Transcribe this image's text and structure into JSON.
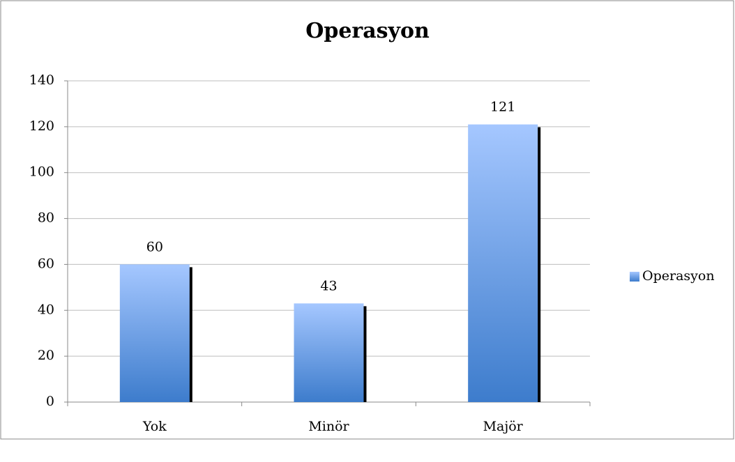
{
  "chart_data": {
    "type": "bar",
    "title": "Operasyon",
    "categories": [
      "Yok",
      "Minör",
      "Majör"
    ],
    "series": [
      {
        "name": "Operasyon",
        "color": "#4f86d6",
        "values": [
          60,
          43,
          121
        ]
      }
    ],
    "ylim": [
      0,
      140
    ],
    "yticks": [
      0,
      20,
      40,
      60,
      80,
      100,
      120,
      140
    ],
    "grid": true,
    "legend": "right"
  }
}
